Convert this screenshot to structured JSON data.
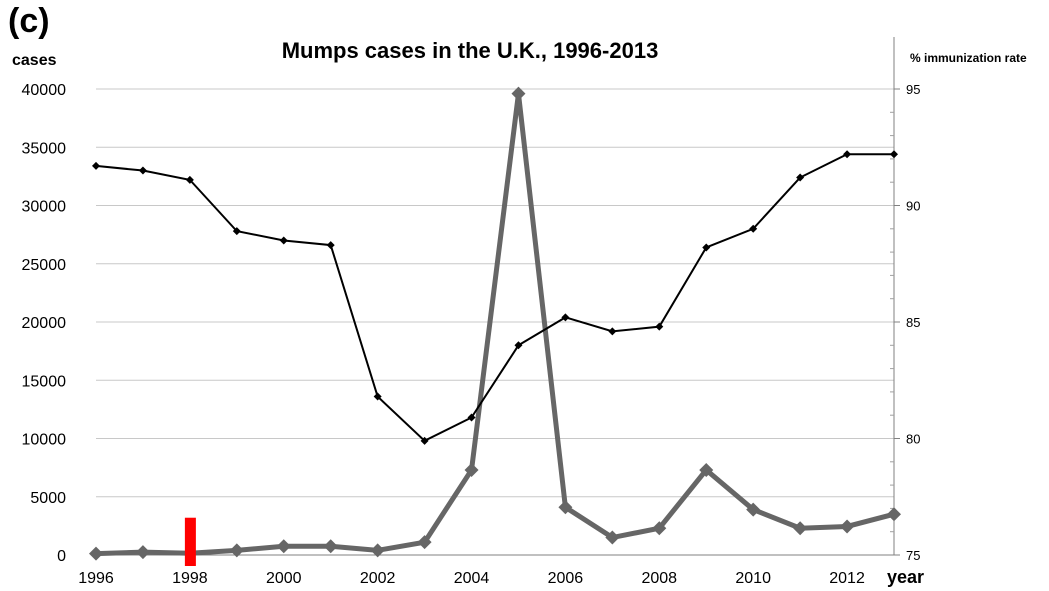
{
  "panel_label": "(c)",
  "chart_data": {
    "type": "line",
    "title": "Mumps cases in the U.K., 1996-2013",
    "ylabel": "cases",
    "y2label": "% immunization rate",
    "xlabel": "year",
    "x": [
      1996,
      1997,
      1998,
      1999,
      2000,
      2001,
      2002,
      2003,
      2004,
      2005,
      2006,
      2007,
      2008,
      2009,
      2010,
      2011,
      2012,
      2013
    ],
    "xticks": [
      "1996",
      "1998",
      "2000",
      "2002",
      "2004",
      "2006",
      "2008",
      "2010",
      "2012"
    ],
    "xlim": [
      1996,
      2013
    ],
    "ylim": [
      0,
      40000
    ],
    "yticks": [
      "0",
      "5000",
      "10000",
      "15000",
      "20000",
      "25000",
      "30000",
      "35000",
      "40000"
    ],
    "y2lim": [
      75,
      95
    ],
    "y2ticks": [
      "75",
      "80",
      "85",
      "90",
      "95"
    ],
    "grid": "horizontal",
    "series": [
      {
        "axis": "left",
        "color": "#666666",
        "values": [
          120,
          250,
          150,
          400,
          750,
          750,
          400,
          1100,
          7300,
          39600,
          4100,
          1500,
          2300,
          7300,
          3900,
          2300,
          2450,
          3500
        ]
      },
      {
        "axis": "right",
        "color": "#000000",
        "values": [
          91.7,
          91.5,
          91.1,
          88.9,
          88.5,
          88.3,
          81.8,
          79.9,
          80.9,
          84.0,
          85.2,
          84.6,
          84.8,
          88.2,
          89.0,
          91.2,
          92.2,
          92.2
        ]
      }
    ],
    "marker": {
      "x": 1998,
      "value": 3200,
      "color": "#ff0000"
    }
  }
}
